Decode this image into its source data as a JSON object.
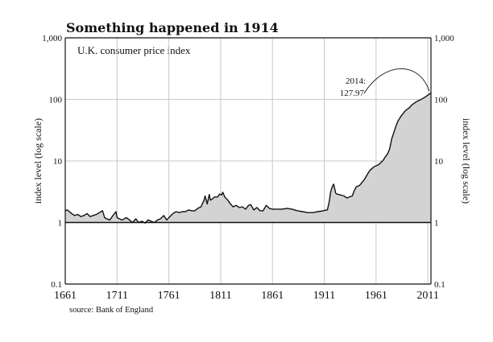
{
  "chart_data": {
    "type": "area",
    "title": "Something happened in 1914",
    "subtitle": "U.K. consumer price index",
    "ylabel": "index level (log scale)",
    "ylabel_right": "index level (log scale)",
    "source": "source: Bank of England",
    "y_scale": "log",
    "grid": true,
    "xlim": [
      1661,
      2014
    ],
    "ylim": [
      0.1,
      1000
    ],
    "x_ticks": [
      1661,
      1711,
      1761,
      1811,
      1861,
      1911,
      1961,
      2011
    ],
    "y_ticks": [
      {
        "value": 0.1,
        "label": "0.1"
      },
      {
        "value": 1,
        "label": "1"
      },
      {
        "value": 10,
        "label": "10"
      },
      {
        "value": 100,
        "label": "100"
      },
      {
        "value": 1000,
        "label": "1,000"
      }
    ],
    "annotation": {
      "line1": "2014:",
      "line2": "127.97",
      "year": 2014,
      "value": 127.97
    },
    "baseline_value": 1,
    "colors": {
      "fill": "#d3d3d3",
      "line": "#111111",
      "grid": "#c8c8c8",
      "axis": "#111111"
    },
    "series": [
      {
        "x": [
          1661,
          1663,
          1665,
          1667,
          1670,
          1673,
          1676,
          1679,
          1682,
          1685,
          1688,
          1691,
          1694,
          1697,
          1699,
          1701,
          1704,
          1707,
          1710,
          1711,
          1713,
          1716,
          1720,
          1723,
          1726,
          1729,
          1732,
          1735,
          1738,
          1741,
          1744,
          1747,
          1750,
          1753,
          1756,
          1759,
          1762,
          1765,
          1768,
          1771,
          1774,
          1777,
          1780,
          1783,
          1786,
          1789,
          1792,
          1795,
          1796,
          1798,
          1800,
          1801,
          1803,
          1805,
          1808,
          1810,
          1812,
          1813,
          1815,
          1818,
          1820,
          1823,
          1826,
          1829,
          1832,
          1835,
          1838,
          1840,
          1843,
          1846,
          1849,
          1852,
          1855,
          1858,
          1861,
          1865,
          1870,
          1875,
          1880,
          1885,
          1890,
          1895,
          1900,
          1905,
          1910,
          1913,
          1914,
          1915,
          1916,
          1917,
          1918,
          1919,
          1920,
          1921,
          1922,
          1923,
          1925,
          1930,
          1933,
          1935,
          1938,
          1940,
          1942,
          1945,
          1948,
          1950,
          1953,
          1955,
          1958,
          1960,
          1963,
          1965,
          1968,
          1970,
          1972,
          1974,
          1975,
          1976,
          1978,
          1980,
          1982,
          1985,
          1988,
          1990,
          1993,
          1995,
          1998,
          2000,
          2003,
          2005,
          2008,
          2011,
          2014
        ],
        "y": [
          1.55,
          1.6,
          1.5,
          1.4,
          1.3,
          1.35,
          1.25,
          1.3,
          1.4,
          1.25,
          1.3,
          1.35,
          1.45,
          1.55,
          1.2,
          1.15,
          1.1,
          1.3,
          1.5,
          1.2,
          1.15,
          1.1,
          1.2,
          1.1,
          1.0,
          1.15,
          1.0,
          1.05,
          0.98,
          1.1,
          1.05,
          1.0,
          1.1,
          1.15,
          1.3,
          1.1,
          1.25,
          1.4,
          1.5,
          1.45,
          1.5,
          1.5,
          1.6,
          1.55,
          1.55,
          1.7,
          1.8,
          2.3,
          2.7,
          2.0,
          2.85,
          2.3,
          2.4,
          2.6,
          2.6,
          2.9,
          2.8,
          3.1,
          2.6,
          2.3,
          2.05,
          1.8,
          1.9,
          1.75,
          1.8,
          1.65,
          1.9,
          1.95,
          1.6,
          1.75,
          1.55,
          1.55,
          1.9,
          1.7,
          1.65,
          1.65,
          1.65,
          1.7,
          1.65,
          1.55,
          1.5,
          1.45,
          1.45,
          1.5,
          1.55,
          1.6,
          1.6,
          1.9,
          2.3,
          3.0,
          3.5,
          3.9,
          4.2,
          3.6,
          3.0,
          2.9,
          2.85,
          2.7,
          2.5,
          2.6,
          2.7,
          3.3,
          3.8,
          4.0,
          4.6,
          5.1,
          6.2,
          7.0,
          7.8,
          8.2,
          8.6,
          9.2,
          10.3,
          11.7,
          13.0,
          15.5,
          18.5,
          22.5,
          28.5,
          36.0,
          44.0,
          53.0,
          62.0,
          67.0,
          73.0,
          80.0,
          87.0,
          92.0,
          97.0,
          101.0,
          108.0,
          117.0,
          127.97
        ]
      }
    ]
  }
}
